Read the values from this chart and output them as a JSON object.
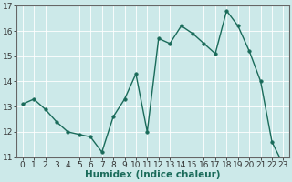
{
  "x": [
    0,
    1,
    2,
    3,
    4,
    5,
    6,
    7,
    8,
    9,
    10,
    11,
    12,
    13,
    14,
    15,
    16,
    17,
    18,
    19,
    20,
    21,
    22,
    23
  ],
  "y": [
    13.1,
    13.3,
    12.9,
    12.4,
    12.0,
    11.9,
    11.8,
    11.2,
    12.6,
    13.3,
    14.3,
    12.0,
    15.7,
    15.5,
    16.2,
    15.9,
    15.5,
    15.1,
    16.8,
    16.2,
    15.2,
    14.0,
    11.6,
    10.7
  ],
  "line_color": "#1a6b5a",
  "marker": "o",
  "markersize": 2.5,
  "linewidth": 1.0,
  "xlabel": "Humidex (Indice chaleur)",
  "xlabel_fontsize": 7.5,
  "ylim": [
    11,
    17
  ],
  "yticks": [
    11,
    12,
    13,
    14,
    15,
    16,
    17
  ],
  "xticks": [
    0,
    1,
    2,
    3,
    4,
    5,
    6,
    7,
    8,
    9,
    10,
    11,
    12,
    13,
    14,
    15,
    16,
    17,
    18,
    19,
    20,
    21,
    22,
    23
  ],
  "bg_color": "#cce9e9",
  "grid_color": "#ffffff",
  "grid_color_minor": "#e8d8d8",
  "spine_color": "#666666",
  "tick_fontsize": 6.5
}
